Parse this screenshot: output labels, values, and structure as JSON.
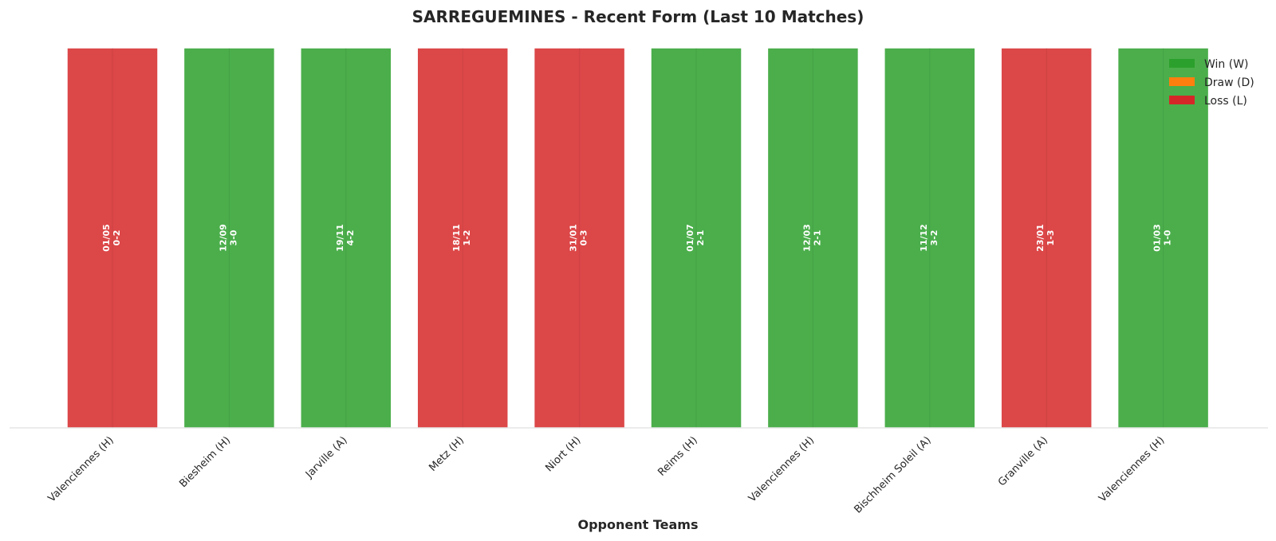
{
  "chart_data": {
    "type": "bar",
    "title": "SARREGUEMINES - Recent Form (Last 10 Matches)",
    "xlabel": "Opponent Teams",
    "ylabel": "",
    "grid": false,
    "legend_position": "top-right",
    "categories": [
      "Valenciennes (H)",
      "Biesheim (H)",
      "Jarville (A)",
      "Metz (H)",
      "Niort (H)",
      "Reims (H)",
      "Valenciennes (H)",
      "Bischheim Soleil (A)",
      "Granville (A)",
      "Valenciennes (H)"
    ],
    "values": [
      1,
      1,
      1,
      1,
      1,
      1,
      1,
      1,
      1,
      1
    ],
    "results": [
      "L",
      "W",
      "W",
      "L",
      "L",
      "W",
      "W",
      "W",
      "L",
      "W"
    ],
    "dates": [
      "01/05",
      "12/09",
      "19/11",
      "18/11",
      "31/01",
      "01/07",
      "12/03",
      "11/12",
      "23/01",
      "01/03"
    ],
    "scores": [
      "0-2",
      "3-0",
      "4-2",
      "1-2",
      "0-3",
      "2-1",
      "2-1",
      "3-2",
      "1-3",
      "1-0"
    ],
    "legend": [
      {
        "key": "W",
        "label": "Win (W)",
        "color": "#2ca02c"
      },
      {
        "key": "D",
        "label": "Draw (D)",
        "color": "#ff7f0e"
      },
      {
        "key": "L",
        "label": "Loss (L)",
        "color": "#d62728"
      }
    ]
  }
}
